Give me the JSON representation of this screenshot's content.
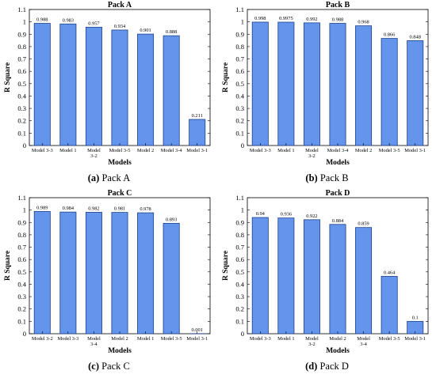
{
  "charts": [
    {
      "id": "a",
      "caption_letter": "(a)",
      "caption_text": "Pack A",
      "chart_data": {
        "type": "bar",
        "title": "Pack A",
        "xlabel": "Models",
        "ylabel": "R Square",
        "ylim": [
          0,
          1.1
        ],
        "yticks": [
          "0",
          "0.1",
          "0.2",
          "0.3",
          "0.4",
          "0.5",
          "0.6",
          "0.7",
          "0.8",
          "0.9",
          "1",
          "1.1"
        ],
        "categories": [
          "Model 3-3",
          "Model 1",
          "Model 3-2",
          "Model 3-5",
          "Model 2",
          "Model 3-4",
          "Model 3-1"
        ],
        "values": [
          0.988,
          0.983,
          0.957,
          0.934,
          0.901,
          0.888,
          0.211
        ],
        "value_labels": [
          "0.988",
          "0.983",
          "0.957",
          "0.934",
          "0.901",
          "0.888",
          "0.211"
        ],
        "grid": false,
        "bar_color": "#6495ED"
      }
    },
    {
      "id": "b",
      "caption_letter": "(b)",
      "caption_text": "Pack B",
      "chart_data": {
        "type": "bar",
        "title": "Pack B",
        "xlabel": "Models",
        "ylabel": "R Square",
        "ylim": [
          0,
          1.1
        ],
        "yticks": [
          "0",
          "0.1",
          "0.2",
          "0.3",
          "0.4",
          "0.5",
          "0.6",
          "0.7",
          "0.8",
          "0.9",
          "1",
          "1.1"
        ],
        "categories": [
          "Model 3-3",
          "Model 1",
          "Model 3-2",
          "Model 3-4",
          "Model 2",
          "Model 3-5",
          "Model 3-1"
        ],
        "values": [
          0.998,
          0.9975,
          0.992,
          0.988,
          0.968,
          0.866,
          0.848
        ],
        "value_labels": [
          "0.998",
          "0.9975",
          "0.992",
          "0.988",
          "0.968",
          "0.866",
          "0.848"
        ],
        "grid": false,
        "bar_color": "#6495ED"
      }
    },
    {
      "id": "c",
      "caption_letter": "(c)",
      "caption_text": "Pack C",
      "chart_data": {
        "type": "bar",
        "title": "Pack C",
        "xlabel": "Models",
        "ylabel": "R Square",
        "ylim": [
          0,
          1.1
        ],
        "yticks": [
          "0",
          "0.1",
          "0.2",
          "0.3",
          "0.4",
          "0.5",
          "0.6",
          "0.7",
          "0.8",
          "0.9",
          "1",
          "1.1"
        ],
        "categories": [
          "Model 3-2",
          "Model 3-3",
          "Model 3-4",
          "Model 2",
          "Model 1",
          "Model 3-5",
          "Model 3-1"
        ],
        "values": [
          0.989,
          0.984,
          0.982,
          0.981,
          0.978,
          0.893,
          0.001
        ],
        "value_labels": [
          "0.989",
          "0.984",
          "0.982",
          "0.981",
          "0.978",
          "0.893",
          "0.001"
        ],
        "grid": false,
        "bar_color": "#6495ED"
      }
    },
    {
      "id": "d",
      "caption_letter": "(d)",
      "caption_text": "Pack D",
      "chart_data": {
        "type": "bar",
        "title": "Pack D",
        "xlabel": "Models",
        "ylabel": "R Square",
        "ylim": [
          0,
          1.1
        ],
        "yticks": [
          "0",
          "0.1",
          "0.2",
          "0.3",
          "0.4",
          "0.5",
          "0.6",
          "0.7",
          "0.8",
          "0.9",
          "1",
          "1.1"
        ],
        "categories": [
          "Model 3-3",
          "Model 1",
          "Model 3-2",
          "Model 2",
          "Model 3-4",
          "Model 3-5",
          "Model 3-1"
        ],
        "values": [
          0.94,
          0.936,
          0.922,
          0.884,
          0.859,
          0.464,
          0.1
        ],
        "value_labels": [
          "0.94",
          "0.936",
          "0.922",
          "0.884",
          "0.859",
          "0.464",
          "0.1"
        ],
        "grid": false,
        "bar_color": "#6495ED"
      }
    }
  ]
}
